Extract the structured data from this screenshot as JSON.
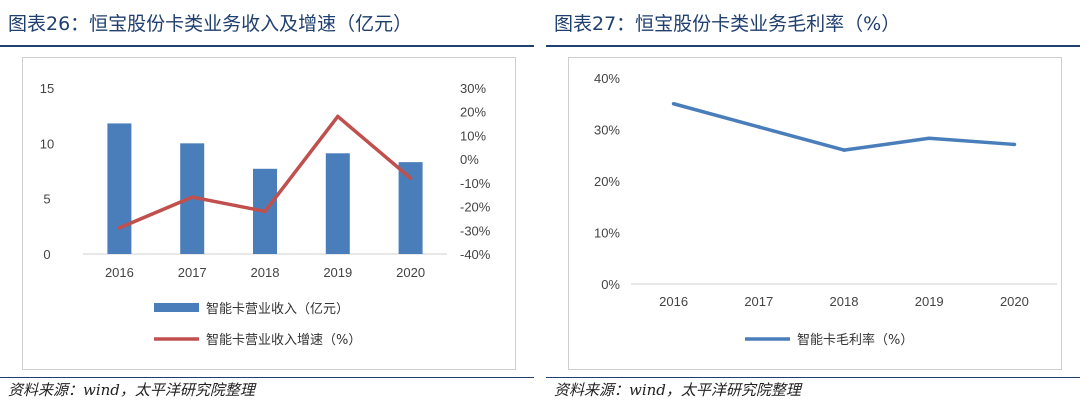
{
  "left_panel": {
    "title": "图表26：恒宝股份卡类业务收入及增速（亿元）",
    "source": "资料来源：wind，太平洋研究院整理"
  },
  "right_panel": {
    "title": "图表27：恒宝股份卡类业务毛利率（%）",
    "source": "资料来源：wind，太平洋研究院整理"
  },
  "colors": {
    "bar": "#4a7ebb",
    "growth_line": "#c0504d",
    "margin_line": "#4a7ebb",
    "title": "#1f3f6e"
  },
  "chart_data": [
    {
      "type": "bar",
      "categories": [
        "2016",
        "2017",
        "2018",
        "2019",
        "2020"
      ],
      "series": [
        {
          "name": "智能卡营业收入（亿元）",
          "type": "bar",
          "axis": "left",
          "values": [
            11.8,
            10.0,
            7.7,
            9.1,
            8.3
          ]
        },
        {
          "name": "智能卡营业收入增速（%）",
          "type": "line",
          "axis": "right",
          "values": [
            -29,
            -16,
            -22,
            18,
            -8
          ]
        }
      ],
      "y_left": {
        "range": [
          0,
          15
        ],
        "ticks": [
          "0",
          "5",
          "10",
          "15"
        ]
      },
      "y_right": {
        "range": [
          -40,
          30
        ],
        "ticks": [
          "-40%",
          "-30%",
          "-20%",
          "-10%",
          "0%",
          "10%",
          "20%",
          "30%"
        ]
      },
      "grid": false,
      "legend_position": "bottom"
    },
    {
      "type": "line",
      "categories": [
        "2016",
        "2017",
        "2018",
        "2019",
        "2020"
      ],
      "series": [
        {
          "name": "智能卡毛利率（%）",
          "values": [
            35,
            30.5,
            26,
            28.3,
            27.1
          ]
        }
      ],
      "y": {
        "range": [
          0,
          40
        ],
        "ticks": [
          "0%",
          "10%",
          "20%",
          "30%",
          "40%"
        ]
      },
      "grid": false,
      "legend_position": "bottom"
    }
  ]
}
